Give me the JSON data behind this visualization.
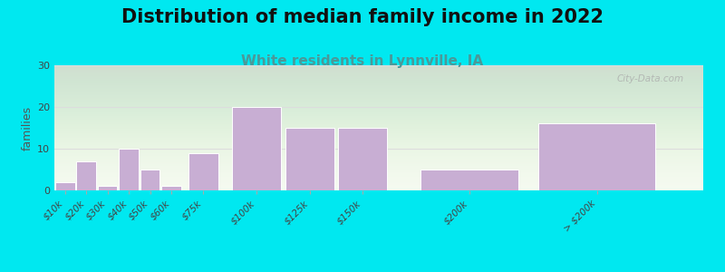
{
  "title": "Distribution of median family income in 2022",
  "subtitle": "White residents in Lynnville, IA",
  "ylabel": "families",
  "bar_positions": [
    10,
    20,
    30,
    40,
    50,
    60,
    75,
    100,
    125,
    150,
    200,
    260
  ],
  "bar_widths": [
    10,
    10,
    10,
    10,
    10,
    10,
    15,
    25,
    25,
    25,
    50,
    60
  ],
  "values": [
    2,
    7,
    1,
    10,
    5,
    1,
    9,
    20,
    15,
    15,
    5,
    16
  ],
  "tick_positions": [
    10,
    20,
    30,
    40,
    50,
    60,
    75,
    100,
    125,
    150,
    200,
    260
  ],
  "tick_labels": [
    "$10k",
    "$20k",
    "$30k",
    "$40k",
    "$50k",
    "$60k",
    "$75k",
    "$100k",
    "$125k",
    "$150k",
    "$200k",
    "> $200k"
  ],
  "bar_color": "#c8aed3",
  "bar_edge_color": "#ffffff",
  "background_outer": "#00e8f0",
  "ylim": [
    0,
    30
  ],
  "yticks": [
    0,
    10,
    20,
    30
  ],
  "xlim": [
    5,
    310
  ],
  "title_fontsize": 15,
  "subtitle_fontsize": 11,
  "subtitle_color": "#4a9999",
  "ylabel_fontsize": 9,
  "watermark": "City-Data.com",
  "grid_color": "#dddddd",
  "bg_top_color": "#f5faf0",
  "bg_bottom_color": "#e8f5e0"
}
